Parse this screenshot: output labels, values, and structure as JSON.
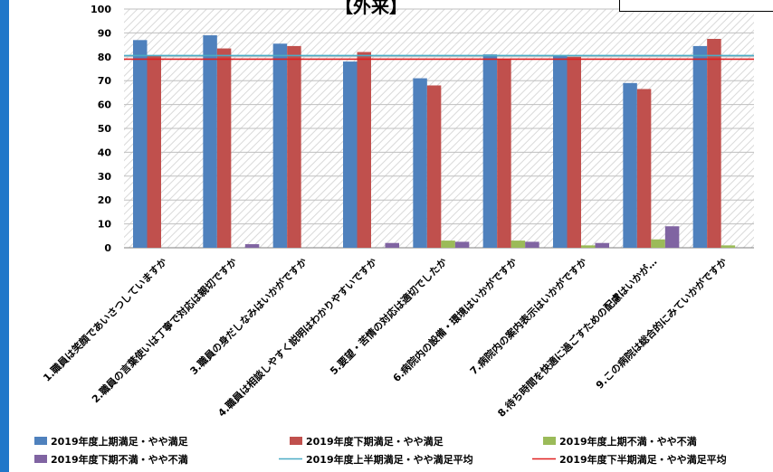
{
  "chart_data": {
    "type": "bar",
    "title": "【外来】",
    "ylim": [
      0,
      100
    ],
    "y_ticks": [
      0,
      10,
      20,
      30,
      40,
      50,
      60,
      70,
      80,
      90,
      100
    ],
    "grid": true,
    "legend_position": "bottom",
    "categories": [
      "1.職員は笑顔であいさつしていますか",
      "2.職員の言葉使いは丁寧で対応は親切ですか",
      "3.職員の身だしなみはいかがですか",
      "4.職員は相談しやすく説明はわかりやすいですか",
      "5.要望・苦情の対応は適切でしたか",
      "6.病院内の設備・環境はいかがですか",
      "7.病院内の案内表示はいかがですか",
      "8.待ち時間を快適に過ごすための配慮はいかが…",
      "9.この病院は総合的にみていかがですか"
    ],
    "series": [
      {
        "name": "2019年度上期満足・やや満足",
        "color": "#4f81bd",
        "values": [
          87,
          89,
          85.5,
          78,
          71,
          81,
          80.5,
          69,
          84.5
        ]
      },
      {
        "name": "2019年度下期満足・やや満足",
        "color": "#c0504d",
        "values": [
          80.5,
          83.5,
          84.5,
          82,
          68,
          79,
          80,
          66.5,
          87.5
        ]
      },
      {
        "name": "2019年度上期不満・やや不満",
        "color": "#9bbb59",
        "values": [
          0,
          0,
          0,
          0,
          3,
          3,
          1,
          3.5,
          1
        ]
      },
      {
        "name": "2019年度下期不満・やや不満",
        "color": "#8064a2",
        "values": [
          0,
          1.5,
          0,
          2,
          2.5,
          2.5,
          2,
          9,
          0
        ]
      }
    ],
    "lines": [
      {
        "name": "2019年度上半期満足・やや満足平均",
        "color": "#4bacc6",
        "value": 80.5
      },
      {
        "name": "2019年度下半期満足・やや満足平均",
        "color": "#e02020",
        "value": 79
      }
    ]
  }
}
